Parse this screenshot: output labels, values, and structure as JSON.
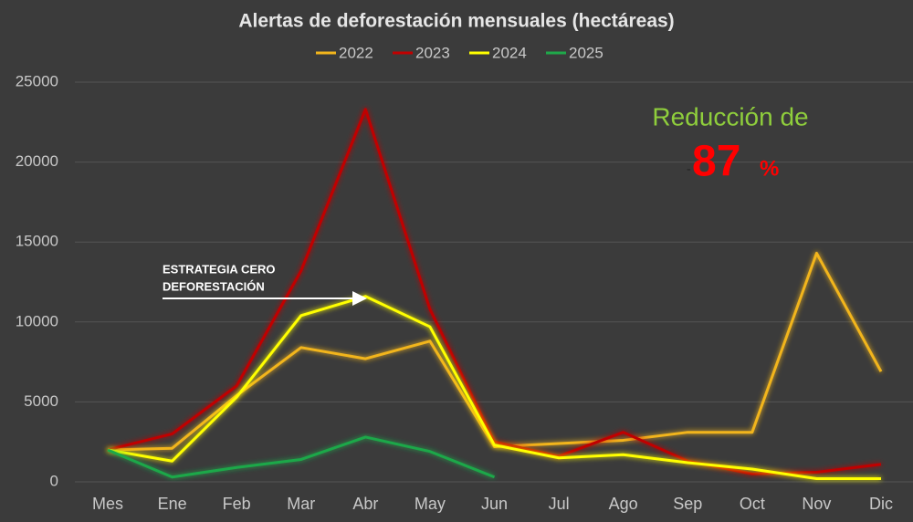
{
  "chart_data": {
    "type": "line",
    "title": "Alertas de deforestación mensuales (hectáreas)",
    "categories": [
      "Mes",
      "Ene",
      "Feb",
      "Mar",
      "Abr",
      "May",
      "Jun",
      "Jul",
      "Ago",
      "Sep",
      "Oct",
      "Nov",
      "Dic"
    ],
    "series": [
      {
        "name": "2022",
        "color": "#f2b51c",
        "values": [
          2000,
          2100,
          5400,
          8400,
          7700,
          8800,
          2200,
          2400,
          2600,
          3100,
          3100,
          14300,
          6900
        ]
      },
      {
        "name": "2023",
        "color": "#c00000",
        "values": [
          2000,
          3000,
          6000,
          13200,
          23300,
          10800,
          2500,
          1600,
          3100,
          1300,
          500,
          600,
          1100
        ]
      },
      {
        "name": "2024",
        "color": "#ffff00",
        "values": [
          2000,
          1300,
          5300,
          10400,
          11600,
          9700,
          2300,
          1500,
          1700,
          1200,
          800,
          200,
          200
        ]
      },
      {
        "name": "2025",
        "color": "#1fa84a",
        "values": [
          2000,
          300,
          900,
          1400,
          2800,
          1900,
          300,
          null,
          null,
          null,
          null,
          null,
          null
        ]
      }
    ],
    "ylim": [
      0,
      25000
    ],
    "yticks": [
      0,
      5000,
      10000,
      15000,
      20000,
      25000
    ],
    "grid": true,
    "annotations": {
      "strategy": [
        "ESTRATEGIA CERO",
        "DEFORESTACIÓN"
      ],
      "reduction": "Reducción de",
      "sign": "-",
      "amount": "87",
      "unit": "%"
    }
  }
}
